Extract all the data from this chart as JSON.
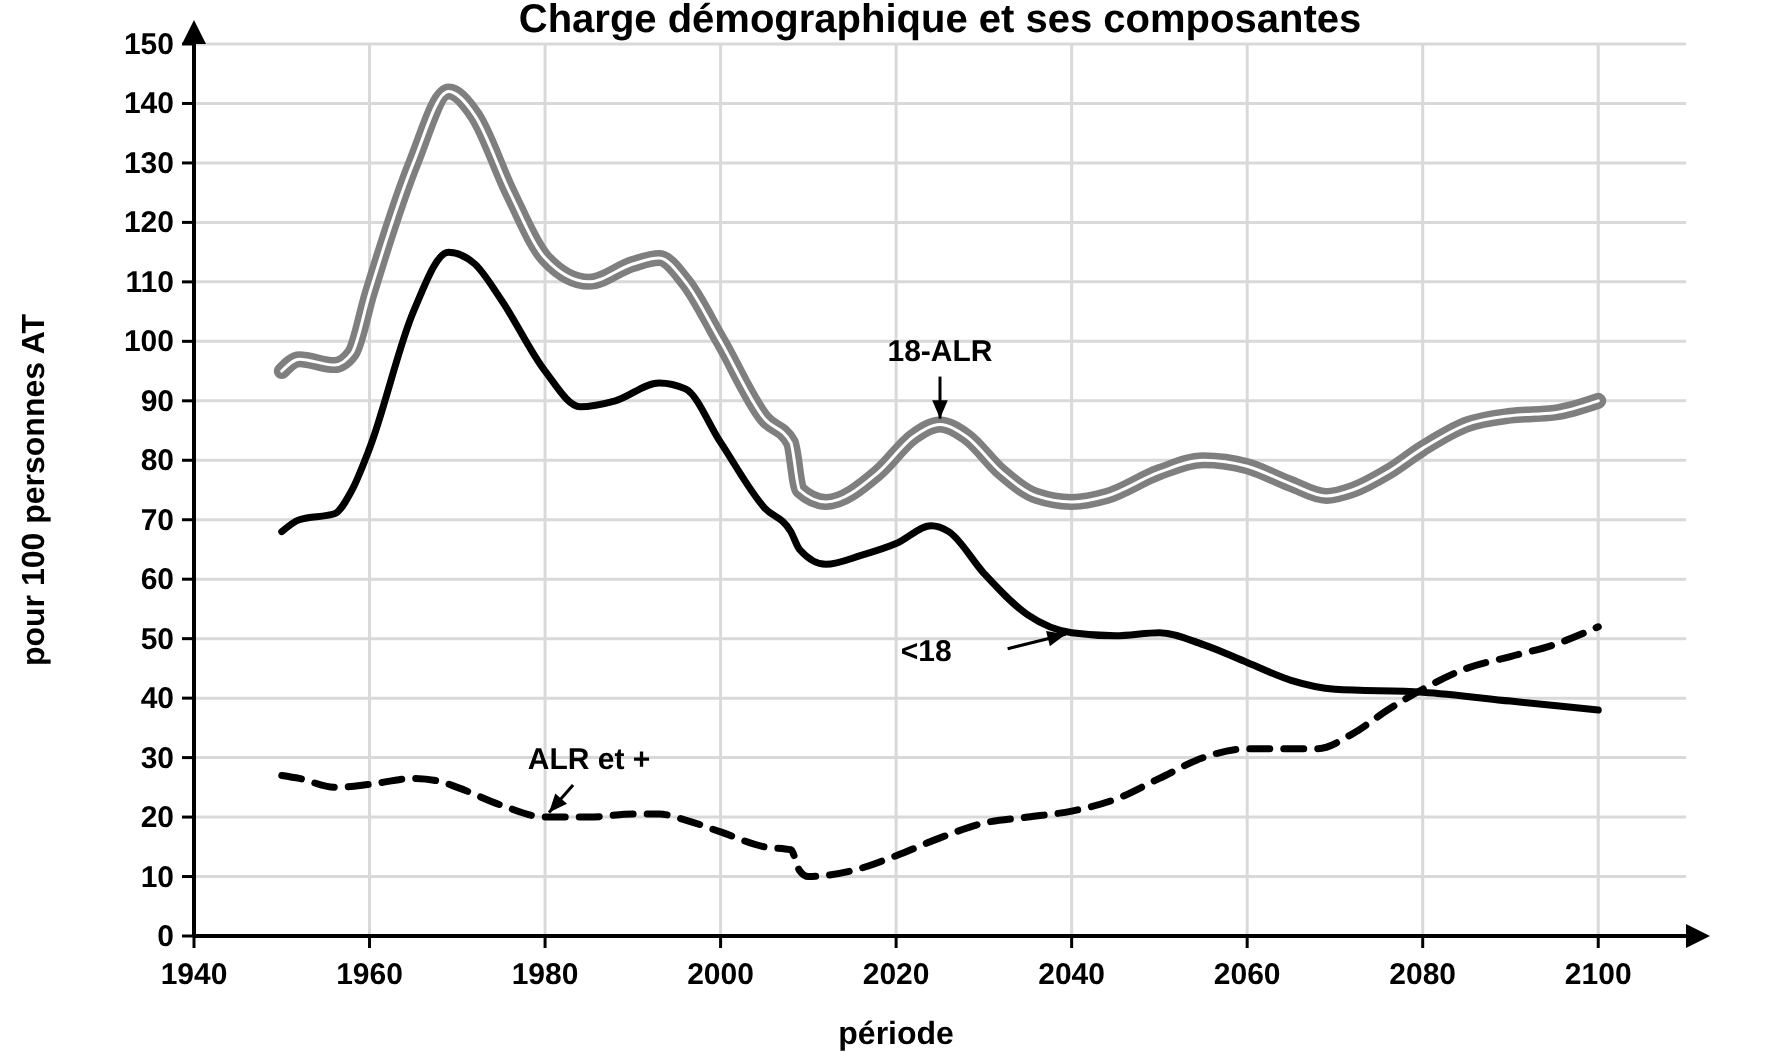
{
  "chart_data": {
    "type": "line",
    "title": "Charge démographique et ses composantes",
    "xlabel": "période",
    "ylabel": "pour 100 personnes AT",
    "xlim": [
      1940,
      2110
    ],
    "ylim": [
      0,
      150
    ],
    "xticks": [
      1940,
      1960,
      1980,
      2000,
      2020,
      2040,
      2060,
      2080,
      2100
    ],
    "yticks": [
      0,
      10,
      20,
      30,
      40,
      50,
      60,
      70,
      80,
      90,
      100,
      110,
      120,
      130,
      140,
      150
    ],
    "grid": true,
    "marker": "none",
    "series": [
      {
        "name": "18-ALR",
        "color": "#7f7f7f",
        "line_style": "solid",
        "x": [
          1950,
          1952,
          1956,
          1958,
          1960,
          1965,
          1969,
          1972,
          1976,
          1980,
          1985,
          1990,
          1993,
          1996,
          2000,
          2005,
          2008,
          2009,
          2012,
          2018,
          2022,
          2025,
          2028,
          2032,
          2036,
          2040,
          2044,
          2050,
          2055,
          2060,
          2065,
          2069,
          2072,
          2076,
          2080,
          2085,
          2090,
          2095,
          2100
        ],
        "values": [
          95,
          97,
          96,
          98,
          108,
          130,
          142,
          138,
          125,
          114,
          110,
          113,
          114,
          110,
          100,
          87,
          83,
          75,
          73,
          78,
          84,
          86,
          84,
          78,
          74,
          73,
          74,
          78,
          80,
          79,
          76,
          74,
          75,
          78,
          82,
          86,
          87.5,
          88,
          90
        ]
      },
      {
        "name": "<18",
        "color": "#000000",
        "line_style": "solid",
        "x": [
          1950,
          1952,
          1956,
          1958,
          1960,
          1965,
          1969,
          1972,
          1975,
          1980,
          1984,
          1988,
          1993,
          1996,
          2000,
          2005,
          2008,
          2009,
          2012,
          2016,
          2020,
          2024,
          2026,
          2030,
          2035,
          2040,
          2045,
          2050,
          2055,
          2060,
          2065,
          2070,
          2080,
          2090,
          2100
        ],
        "values": [
          68,
          70,
          71,
          75,
          82,
          105,
          115,
          113,
          107,
          95,
          89,
          90,
          93,
          92,
          83,
          72,
          68,
          65,
          62.5,
          64,
          66,
          69,
          68,
          61,
          54,
          51,
          50.5,
          51,
          49,
          46,
          43,
          41.5,
          41,
          39.5,
          38
        ]
      },
      {
        "name": "ALR et +",
        "color": "#000000",
        "line_style": "dashed",
        "x": [
          1950,
          1952,
          1956,
          1960,
          1965,
          1968,
          1970,
          1975,
          1980,
          1985,
          1990,
          1993,
          1996,
          2000,
          2005,
          2008,
          2009,
          2010,
          2015,
          2020,
          2025,
          2030,
          2035,
          2040,
          2045,
          2050,
          2055,
          2060,
          2065,
          2068,
          2072,
          2076,
          2080,
          2085,
          2090,
          2095,
          2100
        ],
        "values": [
          27,
          26.5,
          25,
          25.5,
          26.5,
          26,
          25,
          22,
          20,
          20,
          20.5,
          20.5,
          19.5,
          17.5,
          15,
          14.5,
          11,
          10,
          11,
          13.5,
          16.5,
          19,
          20,
          21,
          23,
          26.5,
          30,
          31.5,
          31.5,
          31.5,
          34,
          38,
          41.5,
          45,
          47,
          49,
          52
        ]
      }
    ]
  }
}
